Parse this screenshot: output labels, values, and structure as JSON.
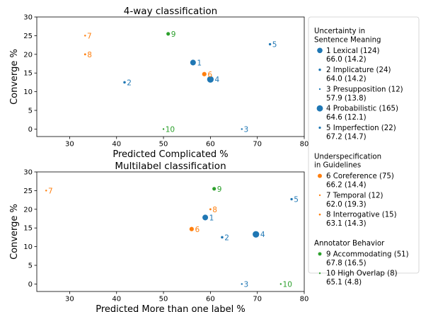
{
  "chart_data": [
    {
      "type": "scatter",
      "title": "4-way classification",
      "xlabel": "Predicted Complicated %",
      "ylabel": "Converge %",
      "xlim": [
        23,
        80
      ],
      "ylim": [
        -2,
        30
      ],
      "xticks": [
        30,
        40,
        50,
        60,
        70,
        80
      ],
      "yticks": [
        0,
        5,
        10,
        15,
        20,
        25,
        30
      ],
      "points": [
        {
          "label": "1",
          "x": 56.3,
          "y": 17.8,
          "color": "#1f77b4",
          "size": 124
        },
        {
          "label": "2",
          "x": 41.7,
          "y": 12.5,
          "color": "#1f77b4",
          "size": 24
        },
        {
          "label": "3",
          "x": 66.7,
          "y": 0.0,
          "color": "#1f77b4",
          "size": 12
        },
        {
          "label": "4",
          "x": 60.0,
          "y": 13.3,
          "color": "#1f77b4",
          "size": 165
        },
        {
          "label": "5",
          "x": 72.7,
          "y": 22.7,
          "color": "#1f77b4",
          "size": 22
        },
        {
          "label": "6",
          "x": 58.7,
          "y": 14.7,
          "color": "#ff7f0e",
          "size": 75
        },
        {
          "label": "7",
          "x": 33.3,
          "y": 25.0,
          "color": "#ff7f0e",
          "size": 12
        },
        {
          "label": "8",
          "x": 33.3,
          "y": 20.0,
          "color": "#ff7f0e",
          "size": 15
        },
        {
          "label": "9",
          "x": 51.0,
          "y": 25.5,
          "color": "#2ca02c",
          "size": 51
        },
        {
          "label": "10",
          "x": 50.0,
          "y": 0.0,
          "color": "#2ca02c",
          "size": 8
        }
      ]
    },
    {
      "type": "scatter",
      "title": "Multilabel classification",
      "xlabel": "Predicted More than one label %",
      "ylabel": "Converge %",
      "xlim": [
        23,
        80
      ],
      "ylim": [
        -2,
        30
      ],
      "xticks": [
        30,
        40,
        50,
        60,
        70,
        80
      ],
      "yticks": [
        0,
        5,
        10,
        15,
        20,
        25,
        30
      ],
      "points": [
        {
          "label": "1",
          "x": 58.9,
          "y": 17.8,
          "color": "#1f77b4",
          "size": 124
        },
        {
          "label": "2",
          "x": 62.5,
          "y": 12.5,
          "color": "#1f77b4",
          "size": 24
        },
        {
          "label": "3",
          "x": 66.7,
          "y": 0.0,
          "color": "#1f77b4",
          "size": 12
        },
        {
          "label": "4",
          "x": 69.7,
          "y": 13.3,
          "color": "#1f77b4",
          "size": 165
        },
        {
          "label": "5",
          "x": 77.3,
          "y": 22.7,
          "color": "#1f77b4",
          "size": 22
        },
        {
          "label": "6",
          "x": 56.0,
          "y": 14.7,
          "color": "#ff7f0e",
          "size": 75
        },
        {
          "label": "7",
          "x": 25.0,
          "y": 25.0,
          "color": "#ff7f0e",
          "size": 12
        },
        {
          "label": "8",
          "x": 60.0,
          "y": 20.0,
          "color": "#ff7f0e",
          "size": 15
        },
        {
          "label": "9",
          "x": 60.8,
          "y": 25.5,
          "color": "#2ca02c",
          "size": 51
        },
        {
          "label": "10",
          "x": 75.0,
          "y": 0.0,
          "color": "#2ca02c",
          "size": 8
        }
      ]
    }
  ],
  "legend": {
    "placement": "right",
    "groups": [
      {
        "title": [
          "Uncertainty in",
          "Sentence Meaning"
        ],
        "color": "#1f77b4",
        "entries": [
          {
            "lines": [
              "1 Lexical (124)",
              "66.0 (14.2)"
            ],
            "size": 124
          },
          {
            "lines": [
              "2 Implicature (24)",
              "64.0 (14.2)"
            ],
            "size": 24
          },
          {
            "lines": [
              "3 Presupposition (12)",
              "57.9 (13.8)"
            ],
            "size": 12
          },
          {
            "lines": [
              "4 Probabilistic (165)",
              "64.6 (12.1)"
            ],
            "size": 165
          },
          {
            "lines": [
              "5 Imperfection (22)",
              "67.2 (14.7)"
            ],
            "size": 22
          }
        ]
      },
      {
        "title": [
          "Underspecification",
          "in Guidelines"
        ],
        "color": "#ff7f0e",
        "entries": [
          {
            "lines": [
              "6 Coreference (75)",
              "66.2 (14.4)"
            ],
            "size": 75
          },
          {
            "lines": [
              "7 Temporal (12)",
              "62.0 (19.3)"
            ],
            "size": 12
          },
          {
            "lines": [
              "8 Interrogative (15)",
              "63.1 (14.3)"
            ],
            "size": 15
          }
        ]
      },
      {
        "title": [
          "Annotator Behavior"
        ],
        "color": "#2ca02c",
        "entries": [
          {
            "lines": [
              "9 Accommodating (51)",
              "67.8 (16.5)"
            ],
            "size": 51
          },
          {
            "lines": [
              "10 High Overlap (8)",
              "65.1 (4.8)"
            ],
            "size": 8
          }
        ]
      }
    ]
  }
}
